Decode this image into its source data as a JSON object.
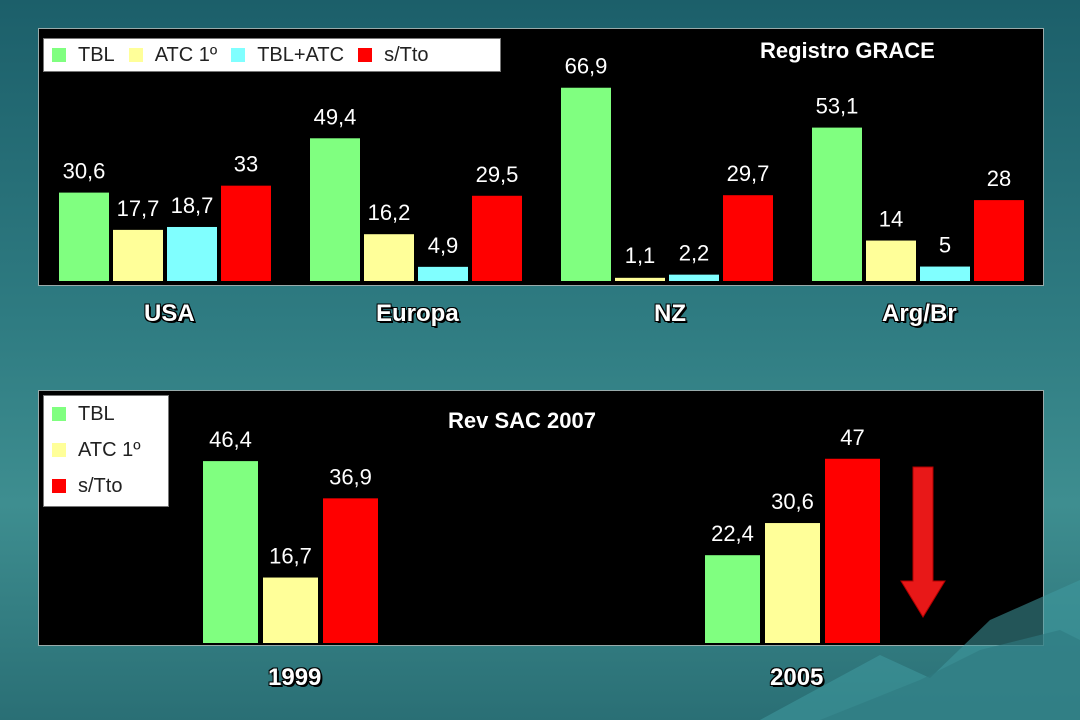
{
  "chart_data": [
    {
      "type": "bar",
      "title": "Registro GRACE",
      "categories": [
        "USA",
        "Europa",
        "NZ",
        "Arg/Br"
      ],
      "series": [
        {
          "name": "TBL",
          "values": [
            30.6,
            49.4,
            66.9,
            53.1
          ],
          "labels": [
            "30,6",
            "49,4",
            "66,9",
            "53,1"
          ],
          "color": "#80ff80"
        },
        {
          "name": "ATC 1º",
          "values": [
            17.7,
            16.2,
            1.1,
            14
          ],
          "labels": [
            "17,7",
            "16,2",
            "1,1",
            "14"
          ],
          "color": "#ffff99"
        },
        {
          "name": "TBL+ATC",
          "values": [
            18.7,
            4.9,
            2.2,
            5
          ],
          "labels": [
            "18,7",
            "4,9",
            "2,2",
            "5"
          ],
          "color": "#80ffff"
        },
        {
          "name": "s/Tto",
          "values": [
            33,
            29.5,
            29.7,
            28
          ],
          "labels": [
            "33",
            "29,5",
            "29,7",
            "28"
          ],
          "color": "#ff0000"
        }
      ],
      "ylim": [
        0,
        72
      ],
      "legend": "top-left",
      "grid": false
    },
    {
      "type": "bar",
      "title": "Rev SAC 2007",
      "categories": [
        "1999",
        "2005"
      ],
      "series": [
        {
          "name": "TBL",
          "values": [
            46.4,
            22.4
          ],
          "labels": [
            "46,4",
            "22,4"
          ],
          "color": "#80ff80"
        },
        {
          "name": "ATC 1º",
          "values": [
            16.7,
            30.6
          ],
          "labels": [
            "16,7",
            "30,6"
          ],
          "color": "#ffff99"
        },
        {
          "name": "s/Tto",
          "values": [
            36.9,
            47
          ],
          "labels": [
            "36,9",
            "47"
          ],
          "color": "#ff0000"
        }
      ],
      "ylim": [
        0,
        50
      ],
      "legend": "top-left",
      "grid": false,
      "annotation": "down-arrow"
    }
  ],
  "colors": {
    "background": "#2f7c82",
    "plot_area": "#000000",
    "arrow": "#e81818"
  }
}
